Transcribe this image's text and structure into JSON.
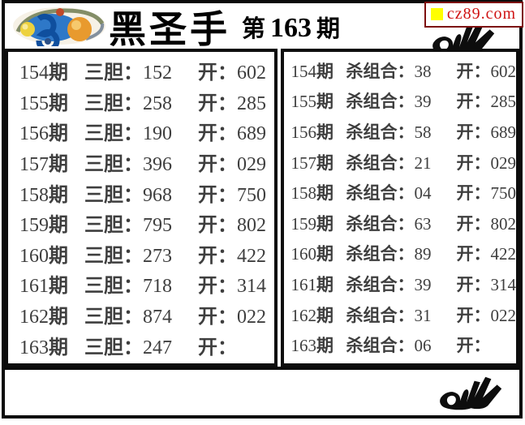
{
  "header": {
    "logo_icon": "3d-lottery-logo",
    "title_main": "黑圣手",
    "issue_prefix": "第",
    "issue_number": "163",
    "issue_suffix": "期",
    "site_label": "cz89.com",
    "site_bullet_icon": "yellow-square",
    "signature_icon": "ok-marker-signature"
  },
  "colors": {
    "row_text": "#3e3e3e",
    "site_red": "#cf1212",
    "site_yellow": "#ffff00",
    "border_black": "#0b0b0b"
  },
  "left_panel": {
    "period_suffix": "期",
    "pick_label": "三胆",
    "open_label": "开",
    "colon": "：",
    "rows": [
      {
        "period": "154",
        "pick": "152",
        "open": "602"
      },
      {
        "period": "155",
        "pick": "258",
        "open": "285"
      },
      {
        "period": "156",
        "pick": "190",
        "open": "689"
      },
      {
        "period": "157",
        "pick": "396",
        "open": "029"
      },
      {
        "period": "158",
        "pick": "968",
        "open": "750"
      },
      {
        "period": "159",
        "pick": "795",
        "open": "802"
      },
      {
        "period": "160",
        "pick": "273",
        "open": "422"
      },
      {
        "period": "161",
        "pick": "718",
        "open": "314"
      },
      {
        "period": "162",
        "pick": "874",
        "open": "022"
      },
      {
        "period": "163",
        "pick": "247",
        "open": ""
      }
    ]
  },
  "right_panel": {
    "period_suffix": "期",
    "pick_label": "杀组合",
    "open_label": "开",
    "colon": "：",
    "rows": [
      {
        "period": "154",
        "pick": "38",
        "open": "602"
      },
      {
        "period": "155",
        "pick": "39",
        "open": "285"
      },
      {
        "period": "156",
        "pick": "58",
        "open": "689"
      },
      {
        "period": "157",
        "pick": "21",
        "open": "029"
      },
      {
        "period": "158",
        "pick": "04",
        "open": "750"
      },
      {
        "period": "159",
        "pick": "63",
        "open": "802"
      },
      {
        "period": "160",
        "pick": "89",
        "open": "422"
      },
      {
        "period": "161",
        "pick": "39",
        "open": "314"
      },
      {
        "period": "162",
        "pick": "31",
        "open": "022"
      },
      {
        "period": "163",
        "pick": "06",
        "open": ""
      }
    ]
  },
  "footer": {
    "signature_icon": "ok-marker-signature"
  }
}
